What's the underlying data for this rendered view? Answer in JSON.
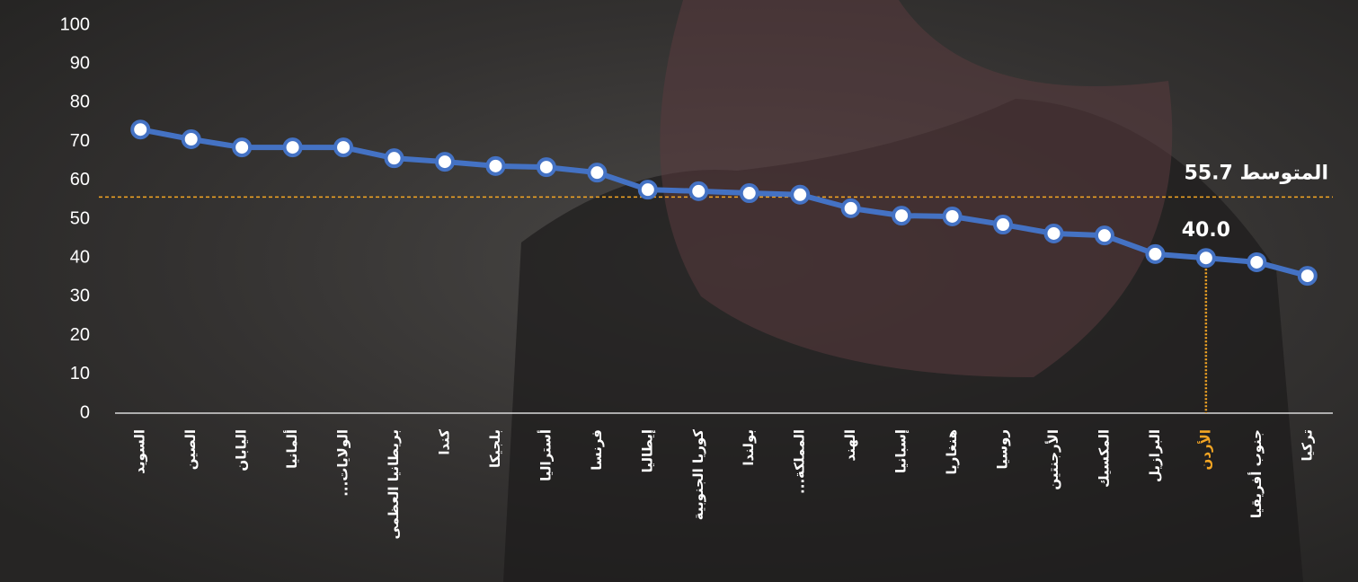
{
  "chart_data": {
    "type": "line",
    "categories": [
      "السويد",
      "الصين",
      "اليابان",
      "ألمانيا",
      "الولايات...",
      "بريطانيا العظمى",
      "كندا",
      "بلجيكا",
      "أستراليا",
      "فرنسا",
      "إيطاليا",
      "كوريا الجنوبية",
      "بولندا",
      "المملكة...",
      "الهند",
      "إسبانيا",
      "هنغاريا",
      "روسيا",
      "الأرجنتين",
      "المكسيك",
      "البرازيل",
      "الأردن",
      "جنوب أفريقيا",
      "تركيا"
    ],
    "values": [
      73.1,
      70.6,
      68.5,
      68.5,
      68.5,
      65.7,
      64.8,
      63.7,
      63.4,
      62.0,
      57.6,
      57.2,
      56.7,
      56.3,
      52.8,
      50.9,
      50.7,
      48.6,
      46.3,
      45.8,
      41.0,
      40.0,
      38.9,
      35.4
    ],
    "value_labels": [
      null,
      null,
      null,
      null,
      null,
      null,
      null,
      null,
      null,
      null,
      null,
      null,
      null,
      null,
      null,
      null,
      null,
      null,
      null,
      null,
      null,
      "40.0",
      null,
      null
    ],
    "color": "#4472c4",
    "highlight_color": "#f5a623",
    "average": {
      "value": 55.7,
      "label": "المتوسط 55.7"
    },
    "ylim": [
      0,
      100
    ],
    "yticks": [
      0,
      10,
      20,
      30,
      40,
      50,
      60,
      70,
      80,
      90,
      100
    ]
  }
}
